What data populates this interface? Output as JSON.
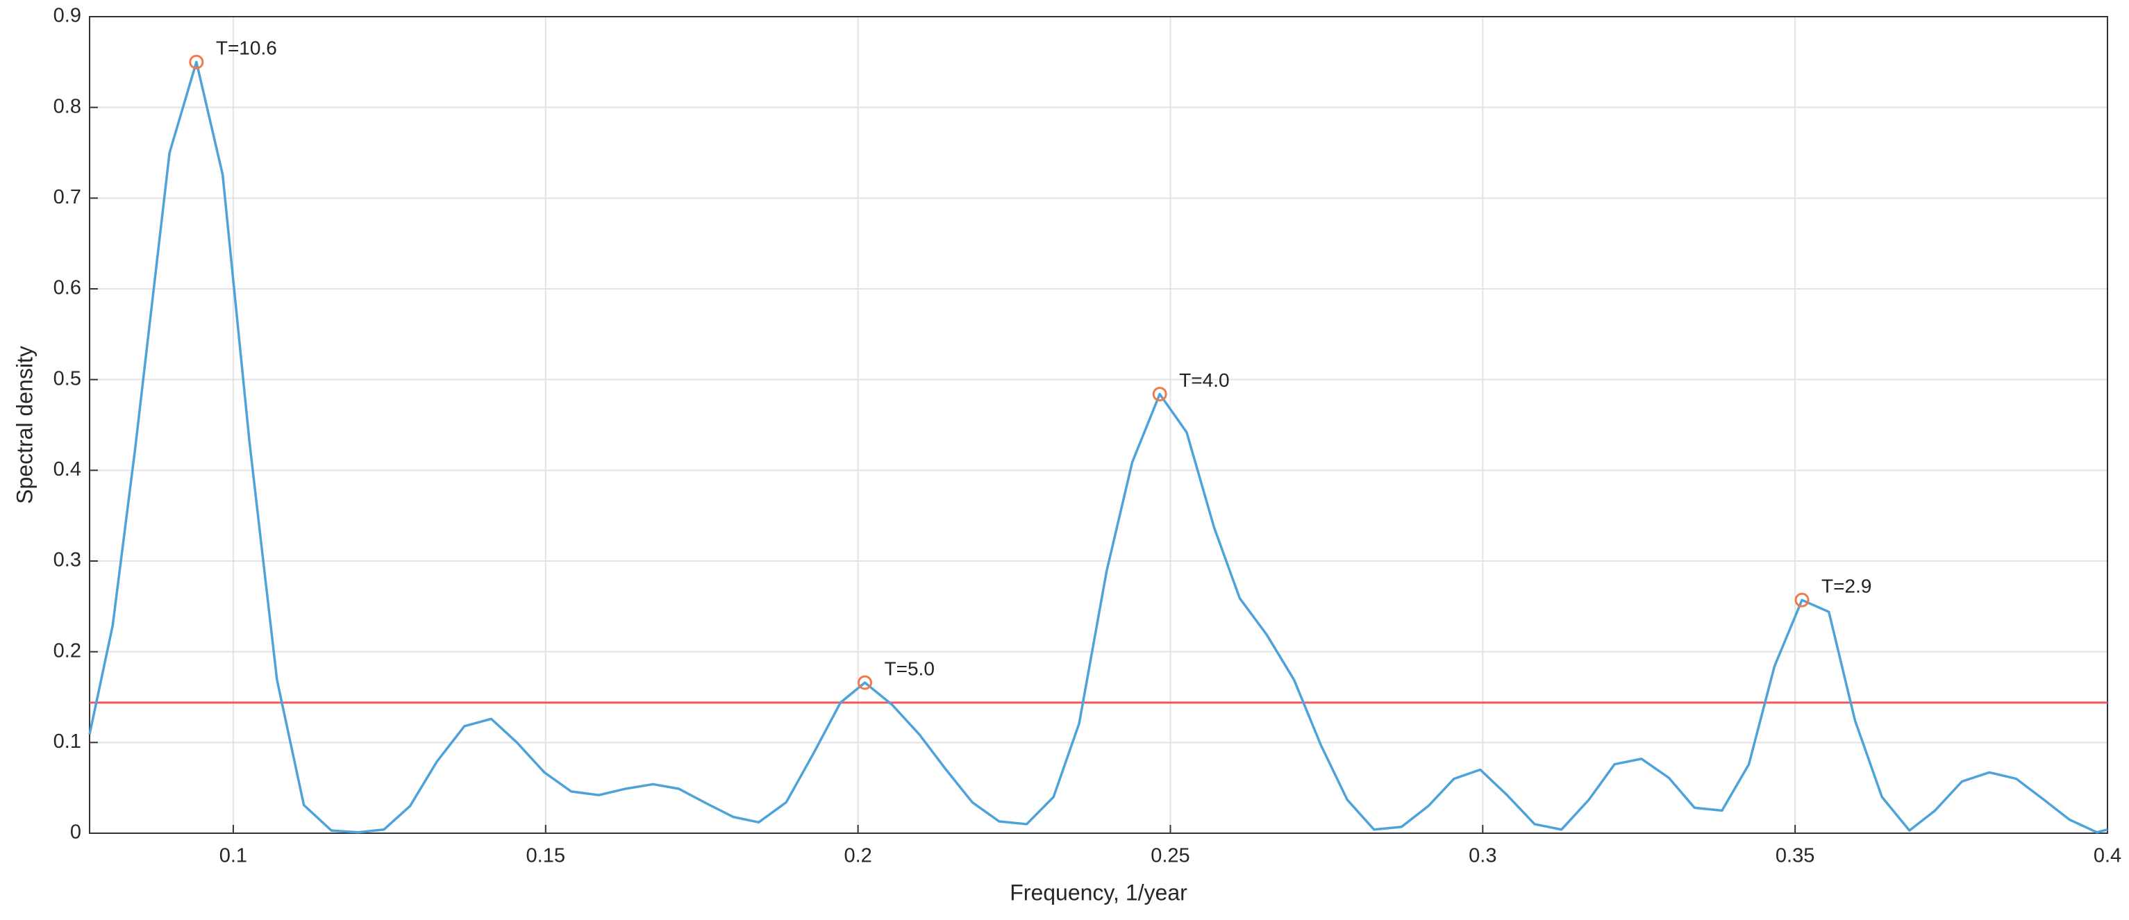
{
  "chart_data": {
    "type": "line",
    "xlabel": "Frequency, 1/year",
    "ylabel": "Spectral density",
    "color": "#4da3d9",
    "x": [
      0.077,
      0.0807,
      0.0843,
      0.0898,
      0.0941,
      0.0983,
      0.1026,
      0.107,
      0.1113,
      0.1157,
      0.12,
      0.1241,
      0.1283,
      0.1326,
      0.137,
      0.1413,
      0.1454,
      0.1498,
      0.1541,
      0.1585,
      0.1628,
      0.1672,
      0.1713,
      0.1757,
      0.18,
      0.1841,
      0.1885,
      0.1928,
      0.1972,
      0.2011,
      0.2054,
      0.2098,
      0.2141,
      0.2183,
      0.2226,
      0.227,
      0.2313,
      0.2354,
      0.2398,
      0.2439,
      0.2483,
      0.2526,
      0.257,
      0.2611,
      0.2654,
      0.2698,
      0.2741,
      0.2783,
      0.2826,
      0.287,
      0.2913,
      0.2954,
      0.2996,
      0.3039,
      0.3083,
      0.3126,
      0.317,
      0.3211,
      0.3254,
      0.3298,
      0.3339,
      0.3383,
      0.3426,
      0.3467,
      0.3511,
      0.3554,
      0.3596,
      0.3639,
      0.3683,
      0.3724,
      0.3767,
      0.3811,
      0.3854,
      0.3898,
      0.3939,
      0.3983,
      0.4
    ],
    "values": [
      0.109,
      0.229,
      0.424,
      0.75,
      0.85,
      0.726,
      0.431,
      0.169,
      0.031,
      0.003,
      0.001,
      0.004,
      0.03,
      0.079,
      0.118,
      0.126,
      0.1,
      0.067,
      0.046,
      0.042,
      0.049,
      0.054,
      0.049,
      0.033,
      0.018,
      0.012,
      0.034,
      0.087,
      0.144,
      0.166,
      0.142,
      0.109,
      0.07,
      0.034,
      0.013,
      0.01,
      0.04,
      0.121,
      0.289,
      0.409,
      0.484,
      0.442,
      0.337,
      0.259,
      0.219,
      0.169,
      0.097,
      0.037,
      0.004,
      0.007,
      0.03,
      0.06,
      0.07,
      0.042,
      0.01,
      0.004,
      0.037,
      0.076,
      0.082,
      0.061,
      0.028,
      0.025,
      0.076,
      0.184,
      0.257,
      0.244,
      0.124,
      0.04,
      0.003,
      0.025,
      0.057,
      0.067,
      0.06,
      0.037,
      0.015,
      0.001,
      0.004
    ],
    "threshold": {
      "value": 0.144,
      "color": "#f0585a"
    },
    "annotations": [
      {
        "text": "T=10.6",
        "x": 0.0941,
        "y": 0.85
      },
      {
        "text": "T=5.0",
        "x": 0.2011,
        "y": 0.166
      },
      {
        "text": "T=4.0",
        "x": 0.2483,
        "y": 0.484
      },
      {
        "text": "T=2.9",
        "x": 0.3511,
        "y": 0.257
      }
    ],
    "marker_color": "#f07a4a",
    "xlim": [
      0.077,
      0.4
    ],
    "ylim": [
      0,
      0.9
    ],
    "xticks": [
      0.1,
      0.15,
      0.2,
      0.25,
      0.3,
      0.35,
      0.4
    ],
    "yticks": [
      0,
      0.1,
      0.2,
      0.3,
      0.4,
      0.5,
      0.6,
      0.7,
      0.8,
      0.9
    ],
    "grid": true
  }
}
